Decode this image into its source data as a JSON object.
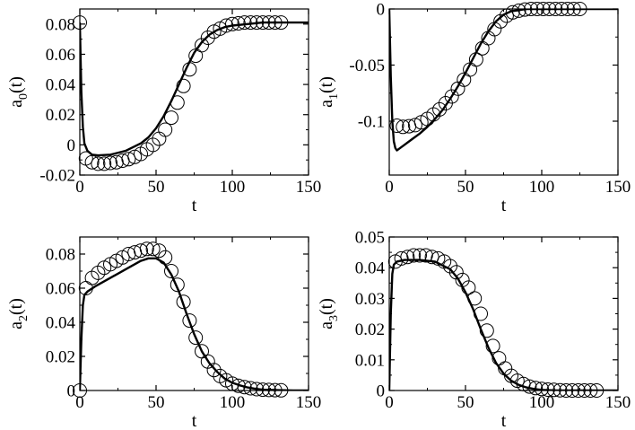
{
  "chart_data": [
    {
      "type": "line",
      "xlabel": "t",
      "ylabel_main": "a",
      "ylabel_sub": "0",
      "ylabel_tail": "(t)",
      "xlim": [
        0,
        150
      ],
      "ylim": [
        -0.02,
        0.09
      ],
      "xticks": [
        0,
        50,
        100,
        150
      ],
      "xtick_labels": [
        "0",
        "50",
        "100",
        "150"
      ],
      "yticks": [
        -0.02,
        0,
        0.02,
        0.04,
        0.06,
        0.08
      ],
      "ytick_labels": [
        "-0.02",
        "0",
        "0.02",
        "0.04",
        "0.06",
        "0.08"
      ],
      "grid": false,
      "series": [
        {
          "style": "line",
          "x": [
            0,
            1,
            2,
            3,
            5,
            8,
            12,
            20,
            30,
            40,
            45,
            50,
            55,
            60,
            65,
            70,
            75,
            80,
            85,
            90,
            95,
            100,
            110,
            120,
            130,
            140,
            150
          ],
          "y": [
            0.081,
            0.035,
            0.012,
            0.001,
            -0.004,
            -0.0065,
            -0.007,
            -0.0065,
            -0.004,
            0.001,
            0.005,
            0.011,
            0.019,
            0.029,
            0.04,
            0.051,
            0.061,
            0.068,
            0.073,
            0.076,
            0.078,
            0.079,
            0.08,
            0.081,
            0.081,
            0.081,
            0.081
          ]
        },
        {
          "style": "circles",
          "x": [
            0,
            4,
            8,
            12,
            16,
            20,
            24,
            28,
            32,
            36,
            40,
            44,
            48,
            52,
            56,
            60,
            64,
            68,
            72,
            76,
            80,
            84,
            88,
            92,
            96,
            100,
            104,
            108,
            112,
            116,
            120,
            124,
            128,
            132
          ],
          "y": [
            0.081,
            -0.009,
            -0.0115,
            -0.0125,
            -0.0125,
            -0.012,
            -0.0115,
            -0.0105,
            -0.0095,
            -0.008,
            -0.006,
            -0.003,
            0.0,
            0.004,
            0.01,
            0.018,
            0.028,
            0.039,
            0.05,
            0.059,
            0.066,
            0.071,
            0.075,
            0.077,
            0.079,
            0.08,
            0.0805,
            0.081,
            0.081,
            0.081,
            0.081,
            0.081,
            0.081,
            0.081
          ]
        }
      ]
    },
    {
      "type": "line",
      "xlabel": "t",
      "ylabel_main": "a",
      "ylabel_sub": "1",
      "ylabel_tail": "(t)",
      "xlim": [
        0,
        150
      ],
      "ylim": [
        -0.148,
        0
      ],
      "xticks": [
        0,
        50,
        100,
        150
      ],
      "xtick_labels": [
        "0",
        "50",
        "100",
        "150"
      ],
      "yticks": [
        -0.1,
        -0.05,
        0
      ],
      "ytick_labels": [
        "-0.1",
        "-0.05",
        "0"
      ],
      "grid": false,
      "series": [
        {
          "style": "line",
          "x": [
            0,
            1,
            2,
            3,
            4,
            5,
            6,
            10,
            15,
            20,
            25,
            30,
            35,
            40,
            45,
            50,
            55,
            60,
            65,
            70,
            75,
            80,
            85,
            90,
            100,
            110,
            120,
            130,
            150
          ],
          "y": [
            0.0,
            -0.06,
            -0.1,
            -0.118,
            -0.124,
            -0.126,
            -0.125,
            -0.121,
            -0.116,
            -0.111,
            -0.105,
            -0.098,
            -0.09,
            -0.08,
            -0.069,
            -0.057,
            -0.044,
            -0.031,
            -0.02,
            -0.011,
            -0.005,
            -0.002,
            -0.001,
            0.0,
            0.0,
            0.0,
            0.0,
            0.0,
            0.0
          ]
        },
        {
          "style": "circles",
          "x": [
            5,
            9,
            13,
            17,
            21,
            25,
            29,
            33,
            37,
            41,
            45,
            49,
            53,
            57,
            61,
            65,
            69,
            73,
            77,
            81,
            85,
            89,
            93,
            97,
            101,
            105,
            109,
            113,
            117,
            121,
            125
          ],
          "y": [
            -0.104,
            -0.105,
            -0.1045,
            -0.1035,
            -0.101,
            -0.098,
            -0.094,
            -0.0895,
            -0.084,
            -0.078,
            -0.071,
            -0.063,
            -0.054,
            -0.045,
            -0.035,
            -0.026,
            -0.018,
            -0.011,
            -0.006,
            -0.003,
            -0.0015,
            -0.0005,
            0.0,
            0.0,
            0.0,
            0.0,
            0.0,
            0.0,
            0.0,
            0.0,
            0.0
          ]
        }
      ]
    },
    {
      "type": "line",
      "xlabel": "t",
      "ylabel_main": "a",
      "ylabel_sub": "2",
      "ylabel_tail": "(t)",
      "xlim": [
        0,
        150
      ],
      "ylim": [
        0,
        0.09
      ],
      "xticks": [
        0,
        50,
        100,
        150
      ],
      "xtick_labels": [
        "0",
        "50",
        "100",
        "150"
      ],
      "yticks": [
        0,
        0.02,
        0.04,
        0.06,
        0.08
      ],
      "ytick_labels": [
        "0",
        "0.02",
        "0.04",
        "0.06",
        "0.08"
      ],
      "grid": false,
      "series": [
        {
          "style": "line",
          "x": [
            0,
            1,
            2,
            3,
            5,
            10,
            20,
            30,
            40,
            45,
            50,
            55,
            60,
            65,
            70,
            75,
            80,
            85,
            90,
            95,
            100,
            105,
            110,
            115,
            120,
            130,
            140,
            150
          ],
          "y": [
            0.0,
            0.03,
            0.05,
            0.056,
            0.058,
            0.061,
            0.066,
            0.071,
            0.076,
            0.0775,
            0.0775,
            0.075,
            0.068,
            0.058,
            0.045,
            0.033,
            0.023,
            0.016,
            0.011,
            0.007,
            0.0045,
            0.003,
            0.0018,
            0.001,
            0.0005,
            0.0002,
            0.0,
            0.0
          ]
        },
        {
          "style": "circles",
          "x": [
            0,
            4,
            8,
            12,
            16,
            20,
            24,
            28,
            32,
            36,
            40,
            44,
            48,
            52,
            56,
            60,
            64,
            68,
            72,
            76,
            80,
            84,
            88,
            92,
            96,
            100,
            104,
            108,
            112,
            116,
            120,
            124,
            128,
            132
          ],
          "y": [
            0.0,
            0.06,
            0.066,
            0.069,
            0.072,
            0.074,
            0.076,
            0.078,
            0.08,
            0.081,
            0.082,
            0.083,
            0.083,
            0.082,
            0.078,
            0.07,
            0.062,
            0.052,
            0.041,
            0.031,
            0.023,
            0.017,
            0.012,
            0.0085,
            0.006,
            0.004,
            0.0028,
            0.002,
            0.0013,
            0.0008,
            0.0005,
            0.0003,
            0.0002,
            0.0001
          ]
        }
      ]
    },
    {
      "type": "line",
      "xlabel": "t",
      "ylabel_main": "a",
      "ylabel_sub": "3",
      "ylabel_tail": "(t)",
      "xlim": [
        0,
        150
      ],
      "ylim": [
        0,
        0.05
      ],
      "xticks": [
        0,
        50,
        100,
        150
      ],
      "xtick_labels": [
        "0",
        "50",
        "100",
        "150"
      ],
      "yticks": [
        0,
        0.01,
        0.02,
        0.03,
        0.04,
        0.05
      ],
      "ytick_labels": [
        "0",
        "0.01",
        "0.02",
        "0.03",
        "0.04",
        "0.05"
      ],
      "grid": false,
      "series": [
        {
          "style": "line",
          "x": [
            0,
            1,
            2,
            3,
            5,
            10,
            20,
            30,
            40,
            45,
            50,
            55,
            60,
            65,
            70,
            75,
            80,
            85,
            90,
            95,
            100,
            110,
            120,
            130,
            140,
            150
          ],
          "y": [
            0.0,
            0.025,
            0.038,
            0.041,
            0.042,
            0.0425,
            0.0425,
            0.042,
            0.0395,
            0.0365,
            0.032,
            0.0265,
            0.02,
            0.014,
            0.009,
            0.0055,
            0.0032,
            0.0018,
            0.001,
            0.0005,
            0.0002,
            0.0,
            0.0,
            0.0,
            0.0,
            0.0
          ]
        },
        {
          "style": "circles",
          "x": [
            4,
            8,
            12,
            16,
            20,
            24,
            28,
            32,
            36,
            40,
            44,
            48,
            52,
            56,
            60,
            64,
            68,
            72,
            76,
            80,
            84,
            88,
            92,
            96,
            100,
            104,
            108,
            112,
            116,
            120,
            124,
            128,
            132,
            136
          ],
          "y": [
            0.042,
            0.043,
            0.0435,
            0.044,
            0.044,
            0.044,
            0.0435,
            0.043,
            0.042,
            0.0405,
            0.0385,
            0.036,
            0.0335,
            0.03,
            0.025,
            0.0195,
            0.0145,
            0.0105,
            0.0072,
            0.0048,
            0.0032,
            0.0021,
            0.0013,
            0.0008,
            0.0005,
            0.0003,
            0.0002,
            0.0001,
            0.0,
            0.0,
            0.0,
            0.0,
            0.0,
            0.0
          ]
        }
      ]
    }
  ]
}
